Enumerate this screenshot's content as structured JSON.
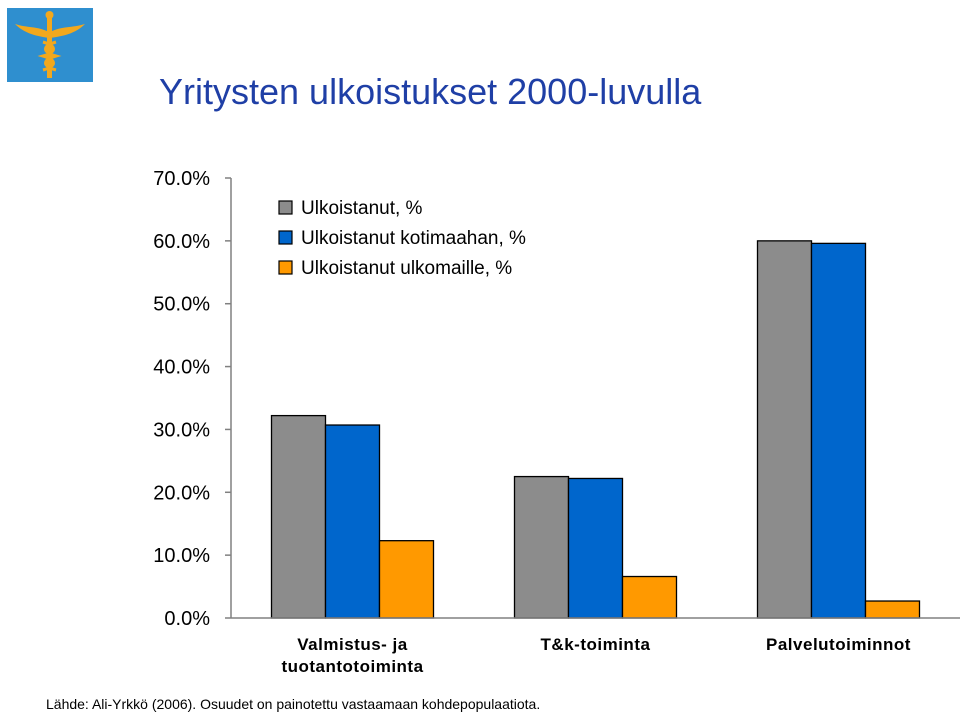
{
  "title": "Yritysten ulkoistukset 2000-luvulla",
  "source": "Lähde: Ali-Yrkkö (2006). Osuudet on painotettu vastaamaan kohdepopulaatiota.",
  "logo_icon": "caduceus-logo-icon",
  "colors": {
    "title": "#1f3fa6",
    "logo_bg": "#2f8fcf",
    "logo_symbol": "#f2a81d"
  },
  "chart_data": {
    "type": "bar",
    "title": "",
    "xlabel": "",
    "ylabel": "",
    "ylim": [
      0,
      0.7
    ],
    "yticks": [
      0,
      0.1,
      0.2,
      0.3,
      0.4,
      0.5,
      0.6,
      0.7
    ],
    "ytick_labels": [
      "0.0%",
      "10.0%",
      "20.0%",
      "30.0%",
      "40.0%",
      "50.0%",
      "60.0%",
      "70.0%"
    ],
    "grid": false,
    "legend_position": "top-left",
    "categories": [
      [
        "Valmistus- ja",
        "tuotantotoiminta"
      ],
      [
        "T&k-toiminta"
      ],
      [
        "Palvelutoiminnot"
      ]
    ],
    "series": [
      {
        "name": "Ulkoistanut, %",
        "color": "#8c8c8c",
        "values": [
          0.322,
          0.225,
          0.6
        ]
      },
      {
        "name": "Ulkoistanut kotimaahan, %",
        "color": "#0066cc",
        "values": [
          0.307,
          0.222,
          0.596
        ]
      },
      {
        "name": "Ulkoistanut ulkomaille, %",
        "color": "#ff9900",
        "values": [
          0.123,
          0.066,
          0.027
        ]
      }
    ]
  }
}
